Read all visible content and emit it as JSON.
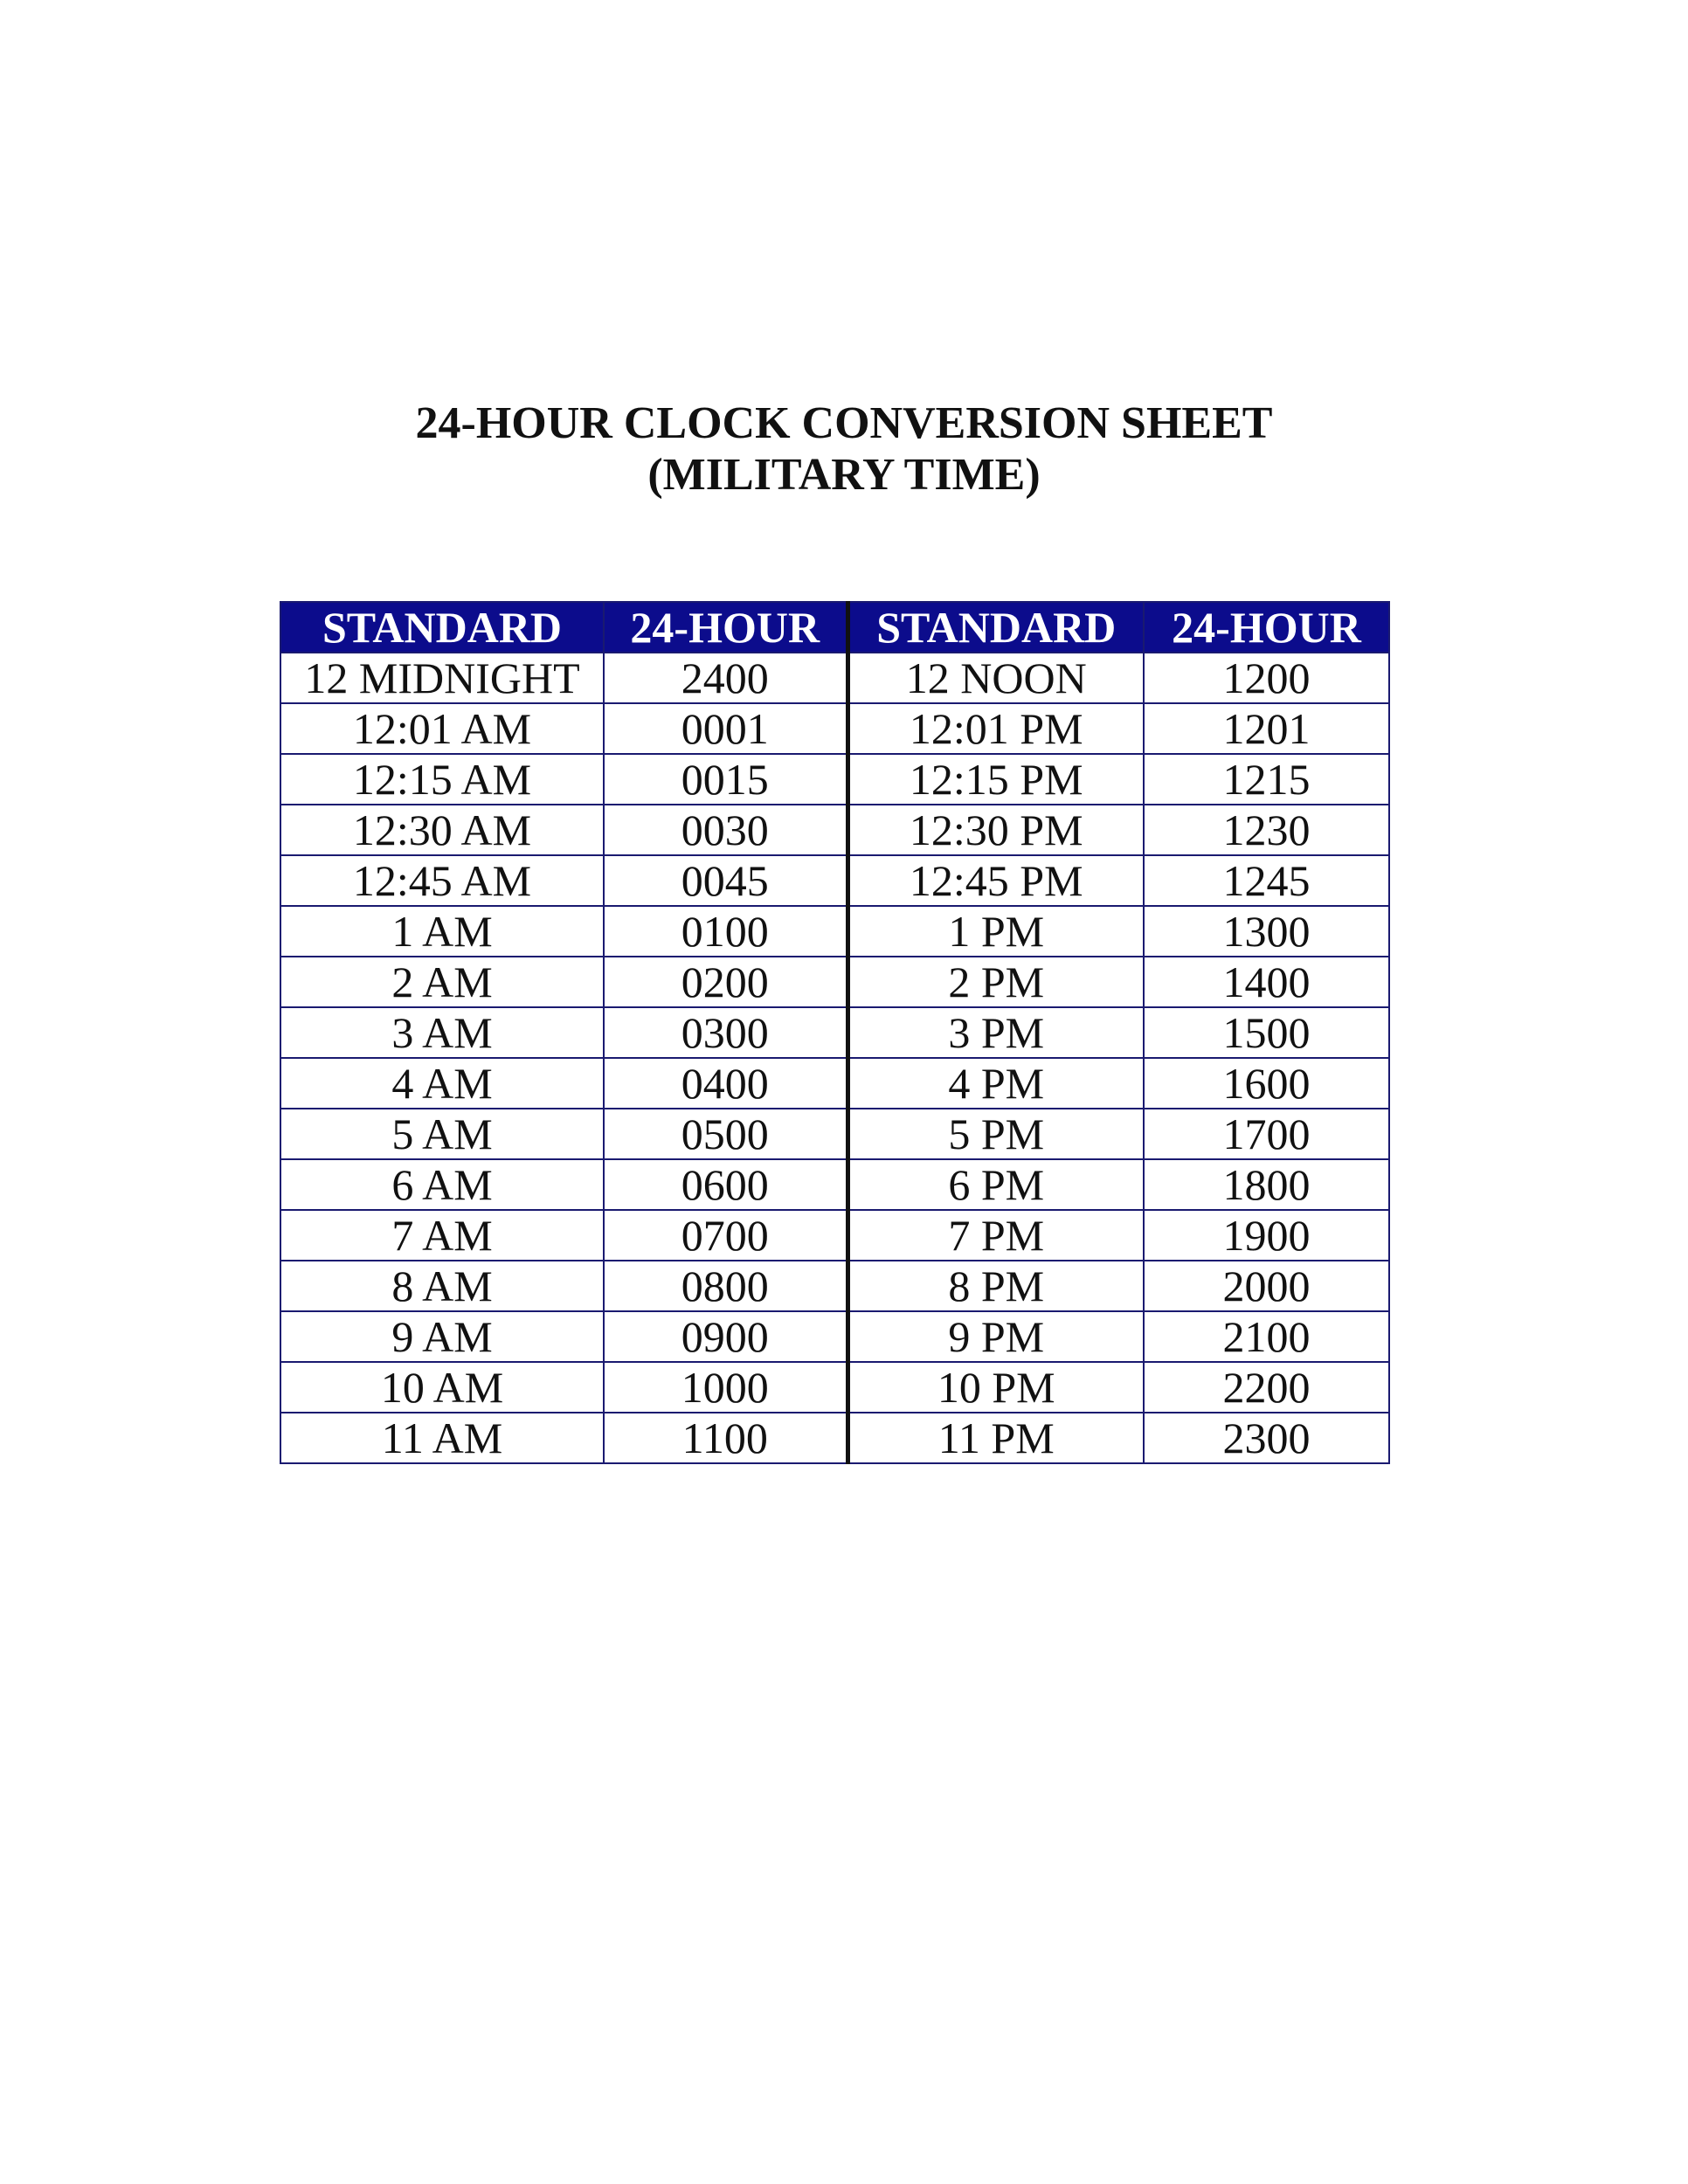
{
  "header": {
    "title_line1": "24-HOUR CLOCK CONVERSION SHEET",
    "title_line2": "(MILITARY TIME)"
  },
  "table": {
    "columns": [
      "STANDARD",
      "24-HOUR",
      "STANDARD",
      "24-HOUR"
    ],
    "rows": [
      [
        "12 MIDNIGHT",
        "2400",
        "12 NOON",
        "1200"
      ],
      [
        "12:01 AM",
        "0001",
        "12:01 PM",
        "1201"
      ],
      [
        "12:15 AM",
        "0015",
        "12:15 PM",
        "1215"
      ],
      [
        "12:30 AM",
        "0030",
        "12:30 PM",
        "1230"
      ],
      [
        "12:45 AM",
        "0045",
        "12:45 PM",
        "1245"
      ],
      [
        "1 AM",
        "0100",
        "1 PM",
        "1300"
      ],
      [
        "2 AM",
        "0200",
        "2 PM",
        "1400"
      ],
      [
        "3 AM",
        "0300",
        "3 PM",
        "1500"
      ],
      [
        "4 AM",
        "0400",
        "4 PM",
        "1600"
      ],
      [
        "5 AM",
        "0500",
        "5 PM",
        "1700"
      ],
      [
        "6 AM",
        "0600",
        "6 PM",
        "1800"
      ],
      [
        "7 AM",
        "0700",
        "7 PM",
        "1900"
      ],
      [
        "8 AM",
        "0800",
        "8 PM",
        "2000"
      ],
      [
        "9 AM",
        "0900",
        "9 PM",
        "2100"
      ],
      [
        "10 AM",
        "1000",
        "10 PM",
        "2200"
      ],
      [
        "11 AM",
        "1100",
        "11 PM",
        "2300"
      ]
    ]
  }
}
